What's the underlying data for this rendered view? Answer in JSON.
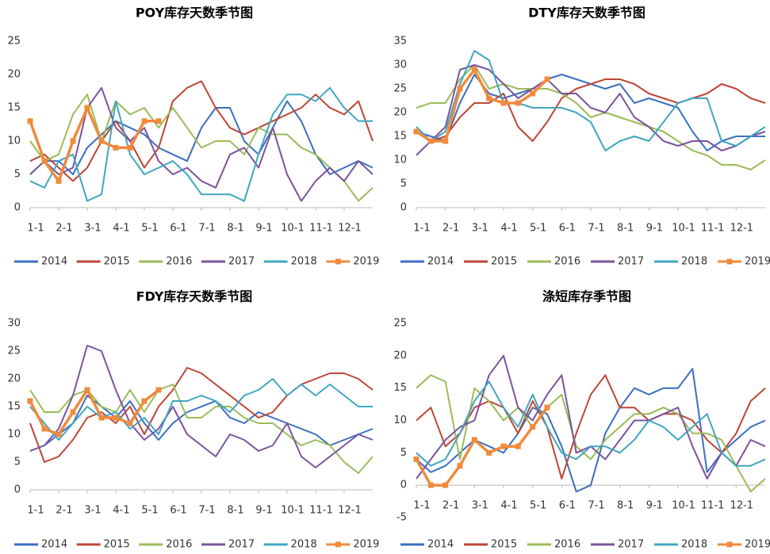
{
  "chart_data": [
    {
      "type": "line",
      "title": "POY库存天数季节图",
      "x": [
        0,
        0.5,
        1,
        1.5,
        2,
        2.5,
        3,
        3.5,
        4,
        4.5,
        5,
        5.5,
        6,
        6.5,
        7,
        7.5,
        8,
        8.5,
        9,
        9.5,
        10,
        10.5,
        11,
        11.5,
        12
      ],
      "xlim": [
        0,
        12
      ],
      "xticks": [
        {
          "value": 0,
          "label": "1-1"
        },
        {
          "value": 1,
          "label": "2-1"
        },
        {
          "value": 2,
          "label": "3-1"
        },
        {
          "value": 3,
          "label": "4-1"
        },
        {
          "value": 4,
          "label": "5-1"
        },
        {
          "value": 5,
          "label": "6-1"
        },
        {
          "value": 6,
          "label": "7-1"
        },
        {
          "value": 7,
          "label": "8-1"
        },
        {
          "value": 8,
          "label": "9-1"
        },
        {
          "value": 9,
          "label": "10-1"
        },
        {
          "value": 10,
          "label": "11-1"
        },
        {
          "value": 11,
          "label": "12-1"
        }
      ],
      "ylim": [
        0,
        25
      ],
      "yticks": [
        0,
        5,
        10,
        15,
        20,
        25
      ],
      "series": [
        {
          "name": "2014",
          "color": "#3a6fbf",
          "values": [
            5,
            7,
            7,
            5,
            9,
            11,
            13,
            12,
            11,
            9,
            8,
            7,
            12,
            15,
            15,
            10,
            8,
            12,
            16,
            13,
            8,
            5,
            6,
            7,
            6
          ]
        },
        {
          "name": "2015",
          "color": "#be4535",
          "values": [
            7,
            8,
            6,
            4,
            6,
            10,
            13,
            10,
            6,
            9,
            16,
            18,
            19,
            15,
            12,
            11,
            12,
            13,
            14,
            15,
            17,
            15,
            14,
            16,
            10
          ]
        },
        {
          "name": "2016",
          "color": "#9bbb59",
          "values": [
            10,
            7,
            8,
            14,
            17,
            10,
            16,
            14,
            15,
            12,
            15,
            12,
            9,
            10,
            10,
            8,
            12,
            11,
            11,
            9,
            8,
            6,
            4,
            1,
            3
          ]
        },
        {
          "name": "2017",
          "color": "#7b539c",
          "values": [
            5,
            7,
            5,
            6,
            15,
            18,
            12,
            10,
            12,
            7,
            5,
            6,
            4,
            3,
            8,
            9,
            6,
            12,
            5,
            1,
            4,
            6,
            4,
            7,
            5
          ]
        },
        {
          "name": "2018",
          "color": "#3fa6c2",
          "values": [
            4,
            3,
            7,
            8,
            1,
            2,
            16,
            8,
            5,
            6,
            7,
            5,
            2,
            2,
            2,
            1,
            8,
            14,
            17,
            17,
            16,
            18,
            15,
            13,
            13
          ]
        },
        {
          "name": "2019",
          "color": "#f08a3c",
          "markers": true,
          "values": [
            13,
            7,
            4,
            10,
            15,
            10,
            9,
            9,
            13,
            13,
            null,
            null,
            null,
            null,
            null,
            null,
            null,
            null,
            null,
            null,
            null,
            null,
            null,
            null,
            null
          ]
        }
      ]
    },
    {
      "type": "line",
      "title": "DTY库存天数季节图",
      "x": [
        0,
        0.5,
        1,
        1.5,
        2,
        2.5,
        3,
        3.5,
        4,
        4.5,
        5,
        5.5,
        6,
        6.5,
        7,
        7.5,
        8,
        8.5,
        9,
        9.5,
        10,
        10.5,
        11,
        11.5,
        12
      ],
      "xlim": [
        0,
        12
      ],
      "xticks": [
        {
          "value": 0,
          "label": "1-1"
        },
        {
          "value": 1,
          "label": "2-1"
        },
        {
          "value": 2,
          "label": "3-1"
        },
        {
          "value": 3,
          "label": "4-1"
        },
        {
          "value": 4,
          "label": "5-1"
        },
        {
          "value": 5,
          "label": "6-1"
        },
        {
          "value": 6,
          "label": "7-1"
        },
        {
          "value": 7,
          "label": "8-1"
        },
        {
          "value": 8,
          "label": "9-1"
        },
        {
          "value": 9,
          "label": "10-1"
        },
        {
          "value": 10,
          "label": "11-1"
        },
        {
          "value": 11,
          "label": "12-1"
        }
      ],
      "ylim": [
        0,
        35
      ],
      "yticks": [
        0,
        5,
        10,
        15,
        20,
        25,
        30,
        35
      ],
      "series": [
        {
          "name": "2014",
          "color": "#3a6fbf",
          "values": [
            16,
            15,
            14,
            22,
            28,
            24,
            23,
            24,
            25,
            27,
            28,
            27,
            26,
            25,
            26,
            22,
            23,
            22,
            21,
            16,
            12,
            14,
            15,
            15,
            15
          ]
        },
        {
          "name": "2015",
          "color": "#be4535",
          "values": [
            16,
            14,
            15,
            19,
            22,
            22,
            24,
            17,
            14,
            18,
            23,
            25,
            26,
            27,
            27,
            26,
            24,
            23,
            22,
            23,
            24,
            26,
            25,
            23,
            22
          ]
        },
        {
          "name": "2016",
          "color": "#9bbb59",
          "values": [
            21,
            22,
            22,
            27,
            30,
            25,
            26,
            25,
            25,
            25,
            24,
            22,
            19,
            20,
            19,
            18,
            17,
            16,
            14,
            12,
            11,
            9,
            9,
            8,
            10
          ]
        },
        {
          "name": "2017",
          "color": "#7b539c",
          "values": [
            11,
            14,
            17,
            29,
            30,
            29,
            26,
            23,
            25,
            27,
            24,
            24,
            21,
            20,
            24,
            19,
            17,
            14,
            13,
            14,
            14,
            12,
            13,
            15,
            16
          ]
        },
        {
          "name": "2018",
          "color": "#3fa6c2",
          "values": [
            17,
            14,
            16,
            26,
            33,
            31,
            22,
            22,
            21,
            21,
            21,
            20,
            18,
            12,
            14,
            15,
            14,
            18,
            22,
            23,
            23,
            14,
            13,
            15,
            17
          ]
        },
        {
          "name": "2019",
          "color": "#f08a3c",
          "markers": true,
          "values": [
            16,
            14,
            14,
            25,
            29,
            23,
            22,
            22,
            24,
            27,
            null,
            null,
            null,
            null,
            null,
            null,
            null,
            null,
            null,
            null,
            null,
            null,
            null,
            null,
            null
          ]
        }
      ]
    },
    {
      "type": "line",
      "title": "FDY库存天数季节图",
      "x": [
        0,
        0.5,
        1,
        1.5,
        2,
        2.5,
        3,
        3.5,
        4,
        4.5,
        5,
        5.5,
        6,
        6.5,
        7,
        7.5,
        8,
        8.5,
        9,
        9.5,
        10,
        10.5,
        11,
        11.5,
        12
      ],
      "xlim": [
        0,
        12
      ],
      "xticks": [
        {
          "value": 0,
          "label": "1-1"
        },
        {
          "value": 1,
          "label": "2-1"
        },
        {
          "value": 2,
          "label": "3-1"
        },
        {
          "value": 3,
          "label": "4-1"
        },
        {
          "value": 4,
          "label": "5-1"
        },
        {
          "value": 5,
          "label": "6-1"
        },
        {
          "value": 6,
          "label": "7-1"
        },
        {
          "value": 7,
          "label": "8-1"
        },
        {
          "value": 8,
          "label": "9-1"
        },
        {
          "value": 9,
          "label": "10-1"
        },
        {
          "value": 10,
          "label": "11-1"
        },
        {
          "value": 11,
          "label": "12-1"
        }
      ],
      "ylim": [
        0,
        30
      ],
      "yticks": [
        0,
        5,
        10,
        15,
        20,
        25,
        30
      ],
      "series": [
        {
          "name": "2014",
          "color": "#3a6fbf",
          "values": [
            7,
            8,
            10,
            12,
            17,
            15,
            13,
            16,
            12,
            9,
            12,
            14,
            15,
            16,
            13,
            12,
            14,
            13,
            12,
            11,
            10,
            8,
            9,
            10,
            11
          ]
        },
        {
          "name": "2015",
          "color": "#be4535",
          "values": [
            12,
            5,
            6,
            9,
            13,
            14,
            12,
            15,
            10,
            15,
            18,
            22,
            21,
            19,
            17,
            15,
            13,
            14,
            17,
            19,
            20,
            21,
            21,
            20,
            18
          ]
        },
        {
          "name": "2016",
          "color": "#9bbb59",
          "values": [
            18,
            14,
            14,
            17,
            18,
            15,
            14,
            18,
            14,
            18,
            19,
            13,
            13,
            15,
            15,
            13,
            12,
            12,
            10,
            8,
            9,
            8,
            5,
            3,
            6
          ]
        },
        {
          "name": "2017",
          "color": "#7b539c",
          "values": [
            7,
            8,
            11,
            17,
            26,
            25,
            18,
            12,
            9,
            11,
            15,
            10,
            8,
            6,
            10,
            9,
            7,
            8,
            12,
            6,
            4,
            6,
            8,
            10,
            9
          ]
        },
        {
          "name": "2018",
          "color": "#3fa6c2",
          "values": [
            15,
            12,
            9,
            12,
            15,
            13,
            14,
            11,
            13,
            10,
            16,
            16,
            17,
            16,
            14,
            17,
            18,
            20,
            17,
            19,
            17,
            19,
            17,
            15,
            15
          ]
        },
        {
          "name": "2019",
          "color": "#f08a3c",
          "markers": true,
          "values": [
            16,
            11,
            10,
            14,
            18,
            13,
            13,
            12,
            16,
            18,
            null,
            null,
            null,
            null,
            null,
            null,
            null,
            null,
            null,
            null,
            null,
            null,
            null,
            null,
            null
          ]
        }
      ]
    },
    {
      "type": "line",
      "title": "涤短库存季节图",
      "x": [
        0,
        0.5,
        1,
        1.5,
        2,
        2.5,
        3,
        3.5,
        4,
        4.5,
        5,
        5.5,
        6,
        6.5,
        7,
        7.5,
        8,
        8.5,
        9,
        9.5,
        10,
        10.5,
        11,
        11.5,
        12
      ],
      "xlim": [
        0,
        12
      ],
      "xticks": [
        {
          "value": 0,
          "label": "1-1"
        },
        {
          "value": 1,
          "label": "2-1"
        },
        {
          "value": 2,
          "label": "3-1"
        },
        {
          "value": 3,
          "label": "4-1"
        },
        {
          "value": 4,
          "label": "5-1"
        },
        {
          "value": 5,
          "label": "6-1"
        },
        {
          "value": 6,
          "label": "7-1"
        },
        {
          "value": 7,
          "label": "8-1"
        },
        {
          "value": 8,
          "label": "9-1"
        },
        {
          "value": 9,
          "label": "10-1"
        },
        {
          "value": 10,
          "label": "11-1"
        },
        {
          "value": 11,
          "label": "12-1"
        }
      ],
      "ylim": [
        -5,
        25
      ],
      "yticks": [
        -5,
        0,
        5,
        10,
        15,
        20,
        25
      ],
      "series": [
        {
          "name": "2014",
          "color": "#3a6fbf",
          "values": [
            4,
            2,
            3,
            5,
            7,
            6,
            5,
            8,
            12,
            11,
            6,
            -1,
            0,
            8,
            12,
            15,
            14,
            15,
            15,
            18,
            2,
            5,
            7,
            9,
            10
          ]
        },
        {
          "name": "2015",
          "color": "#be4535",
          "values": [
            10,
            12,
            6,
            8,
            12,
            13,
            12,
            8,
            13,
            9,
            1,
            8,
            14,
            17,
            12,
            12,
            10,
            11,
            11,
            10,
            7,
            5,
            8,
            13,
            15
          ]
        },
        {
          "name": "2016",
          "color": "#9bbb59",
          "values": [
            15,
            17,
            16,
            4,
            15,
            13,
            10,
            12,
            9,
            12,
            14,
            6,
            4,
            7,
            9,
            11,
            11,
            12,
            11,
            8,
            8,
            7,
            3,
            -1,
            1
          ]
        },
        {
          "name": "2017",
          "color": "#7b539c",
          "values": [
            1,
            4,
            7,
            9,
            10,
            17,
            20,
            12,
            10,
            14,
            17,
            5,
            6,
            4,
            7,
            10,
            10,
            11,
            12,
            6,
            1,
            5,
            3,
            7,
            6
          ]
        },
        {
          "name": "2018",
          "color": "#3fa6c2",
          "values": [
            5,
            3,
            4,
            8,
            13,
            16,
            12,
            9,
            14,
            9,
            5,
            4,
            6,
            6,
            5,
            7,
            10,
            9,
            7,
            9,
            11,
            5,
            3,
            3,
            4
          ]
        },
        {
          "name": "2019",
          "color": "#f08a3c",
          "markers": true,
          "values": [
            4,
            0,
            0,
            3,
            7,
            5,
            6,
            6,
            9,
            12,
            null,
            null,
            null,
            null,
            null,
            null,
            null,
            null,
            null,
            null,
            null,
            null,
            null,
            null,
            null
          ]
        }
      ]
    }
  ]
}
